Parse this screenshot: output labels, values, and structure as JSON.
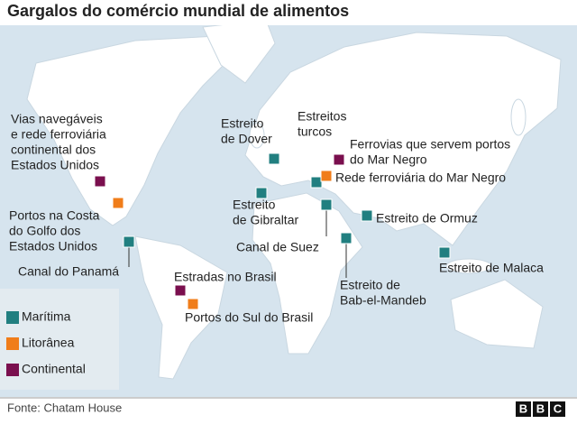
{
  "title": "Gargalos do comércio mundial de alimentos",
  "legend": [
    {
      "label": "Marítima",
      "color": "#217f80",
      "points": [
        {
          "label": [
            "Estreito",
            "de Dover"
          ]
        },
        {
          "label": [
            "Estreitos",
            "turcos"
          ]
        },
        {
          "label": [
            "Estreito",
            "de Gibraltar"
          ]
        },
        {
          "label": [
            "Canal de Suez"
          ]
        },
        {
          "label": [
            "Estreito de Ormuz"
          ]
        },
        {
          "label": [
            "Estreito de",
            "Bab-el-Mandeb"
          ]
        },
        {
          "label": [
            "Estreito de Malaca"
          ]
        },
        {
          "label": [
            "Canal do Panamá"
          ]
        }
      ]
    },
    {
      "label": "Litorânea",
      "color": "#f07d1a",
      "points": [
        {
          "label": [
            "Portos na Costa",
            "do Golfo dos",
            "Estados Unidos"
          ]
        },
        {
          "label": [
            "Rede ferroviária do Mar Negro"
          ]
        },
        {
          "label": [
            "Portos do Sul do Brasil"
          ]
        }
      ]
    },
    {
      "label": "Continental",
      "color": "#7a0f4e",
      "points": [
        {
          "label": [
            "Vias navegáveis",
            "e rede ferroviária",
            "continental dos",
            "Estados Unidos"
          ]
        },
        {
          "label": [
            "Ferrovias que servem portos",
            "do Mar Negro"
          ]
        },
        {
          "label": [
            "Estradas no Brasil"
          ]
        }
      ]
    }
  ],
  "source": "Fonte: Chatam House",
  "logo": [
    "B",
    "B",
    "C"
  ]
}
